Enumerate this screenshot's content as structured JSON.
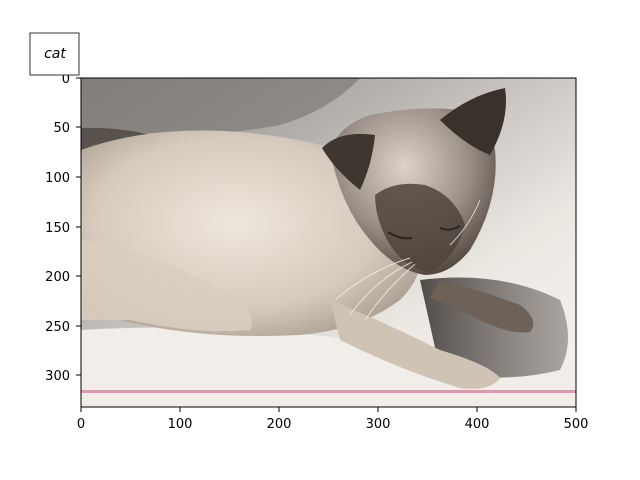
{
  "caption": "cat",
  "x_axis": {
    "ticks": [
      "0",
      "100",
      "200",
      "300",
      "400",
      "500"
    ]
  },
  "y_axis": {
    "ticks": [
      "0",
      "50",
      "100",
      "150",
      "200",
      "250",
      "300"
    ]
  },
  "colors": {
    "background": "#ffffff",
    "frame": "#000000",
    "overlay_line": "#d89aae",
    "fur_light": "#e8ddd2",
    "fur_dark": "#4a4038",
    "blanket": "#efece6",
    "shadow": "#6f6a66"
  }
}
